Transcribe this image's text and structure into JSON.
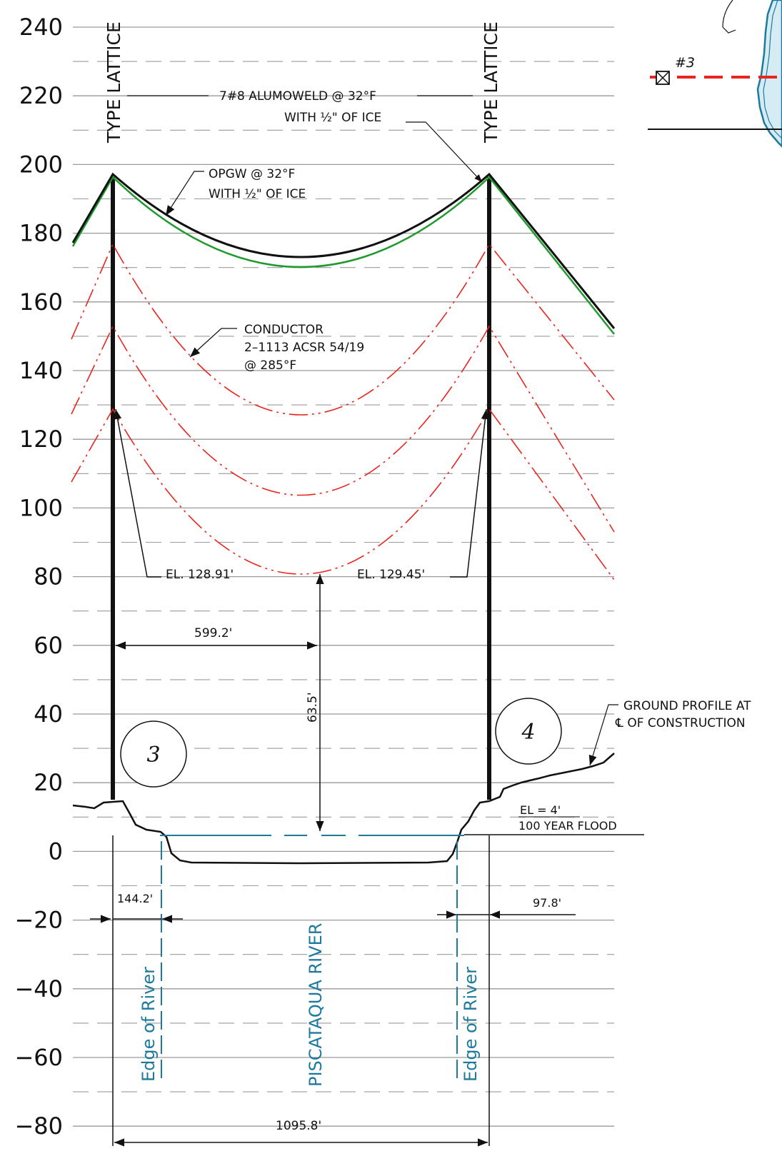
{
  "y_axis": {
    "labels": [
      "240",
      "220",
      "200",
      "180",
      "160",
      "140",
      "120",
      "100",
      "80",
      "60",
      "40",
      "20",
      "0",
      "−20",
      "−40",
      "−60",
      "−80"
    ]
  },
  "towers": {
    "left_type": "TYPE LATTICE",
    "right_type": "TYPE LATTICE",
    "left_number": "3",
    "right_number": "4"
  },
  "callouts": {
    "alumoweld_line1": "7#8 ALUMOWELD @ 32°F",
    "alumoweld_line2": "WITH ½\" OF ICE",
    "opgw_line1": "OPGW @ 32°F",
    "opgw_line2": "WITH ½\" OF ICE",
    "conductor_line1": "CONDUCTOR",
    "conductor_line2": "2–1113 ACSR 54/19",
    "conductor_line3": "@ 285°F",
    "el_left": "EL. 128.91'",
    "el_right": "EL. 129.45'",
    "ground_line1": "GROUND PROFILE AT",
    "ground_line2": "℄ OF CONSTRUCTION",
    "flood_line1": "EL = 4'",
    "flood_line2": "100 YEAR FLOOD"
  },
  "dimensions": {
    "half_span": "599.2'",
    "clearance": "63.5'",
    "left_edge": "144.2'",
    "right_edge": "97.8'",
    "total_span": "1095.8'"
  },
  "river": {
    "edge_left": "Edge of River",
    "name": "PISCATAQUA RIVER",
    "edge_right": "Edge of River"
  },
  "inset": {
    "structure_label": "#3"
  },
  "colors": {
    "conductor": "#e8261f",
    "opgw": "#1f9a2e",
    "water": "#1d7a9c",
    "ink": "#111111",
    "grid": "#9a9a9a"
  }
}
